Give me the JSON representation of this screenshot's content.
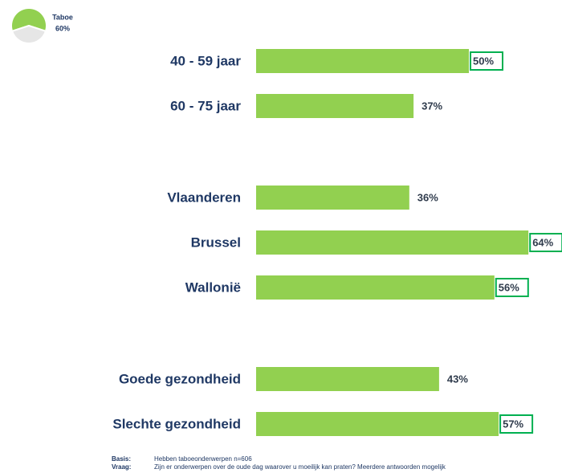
{
  "chart_data": {
    "type": "bar",
    "orientation": "horizontal",
    "categories": [
      "40 - 59 jaar",
      "60 - 75 jaar",
      "Vlaanderen",
      "Brussel",
      "Wallonië",
      "Goede gezondheid",
      "Slechte gezondheid"
    ],
    "values": [
      50,
      37,
      36,
      64,
      56,
      43,
      57
    ],
    "value_labels": [
      "50%",
      "37%",
      "36%",
      "64%",
      "56%",
      "43%",
      "57%"
    ],
    "highlighted": [
      true,
      false,
      false,
      true,
      true,
      false,
      true
    ],
    "color": "#92d050",
    "highlight_color": "#00b050",
    "badge": {
      "label": "Taboe",
      "value": 60,
      "value_label": "60%",
      "color": "#92d050",
      "rest_color": "#e6e6e6"
    },
    "footer": {
      "basis_label": "Basis:",
      "basis": "Hebben taboeonderwerpen n=606",
      "question_label": "Vraag:",
      "question": "Zijn er onderwerpen over de oude dag waarover u moeilijk kan praten? Meerdere antwoorden mogelijk"
    }
  }
}
